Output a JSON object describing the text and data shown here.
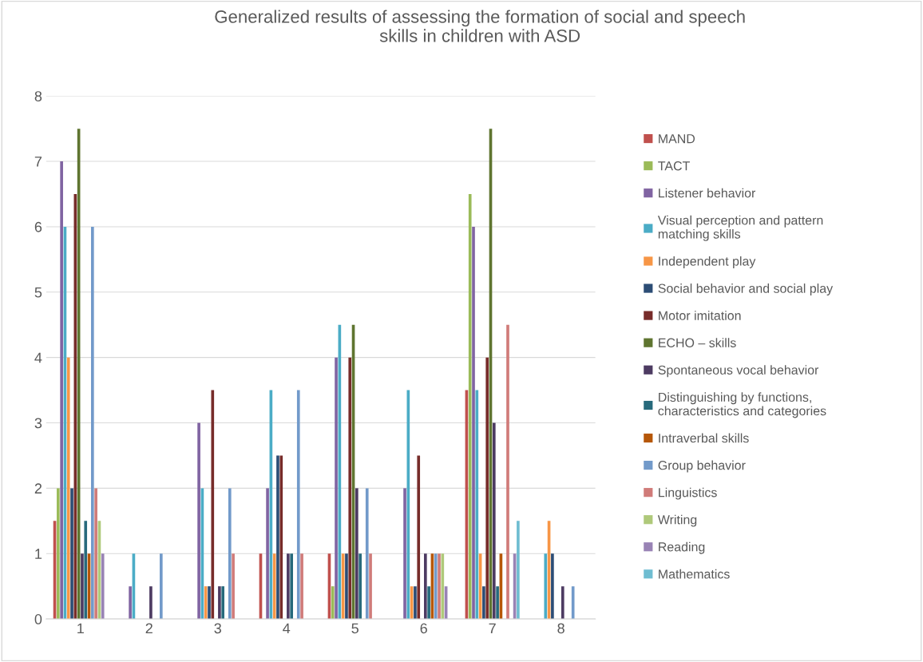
{
  "chart_data": {
    "type": "bar",
    "title": "Generalized results of assessing the formation of social and speech\nskills in children with ASD",
    "categories": [
      "1",
      "2",
      "3",
      "4",
      "5",
      "6",
      "7",
      "8"
    ],
    "series": [
      {
        "name": "MAND",
        "color": "#c0504d",
        "values": [
          1.5,
          0,
          0,
          1,
          1,
          0,
          3.5,
          0
        ]
      },
      {
        "name": "TACT",
        "color": "#9bbb59",
        "values": [
          2,
          0,
          0,
          0,
          0.5,
          0,
          6.5,
          0
        ]
      },
      {
        "name": "Listener behavior",
        "color": "#8064a2",
        "values": [
          7,
          0.5,
          3,
          2,
          4,
          2,
          6,
          0
        ]
      },
      {
        "name": "Visual perception and pattern\nmatching skills",
        "color": "#4bacc6",
        "values": [
          6,
          1,
          2,
          3.5,
          4.5,
          3.5,
          3.5,
          1
        ]
      },
      {
        "name": "Independent play",
        "color": "#f79646",
        "values": [
          4,
          0,
          0.5,
          1,
          1,
          0.5,
          1,
          1.5
        ]
      },
      {
        "name": "Social behavior and social play",
        "color": "#2c4d75",
        "values": [
          2,
          0,
          0.5,
          2.5,
          1,
          0.5,
          0.5,
          1
        ]
      },
      {
        "name": "Motor imitation",
        "color": "#772c2a",
        "values": [
          6.5,
          0,
          3.5,
          2.5,
          4,
          2.5,
          4,
          0
        ]
      },
      {
        "name": "ECHO – skills",
        "color": "#5f7530",
        "values": [
          7.5,
          0,
          0,
          0,
          4.5,
          0,
          7.5,
          0
        ]
      },
      {
        "name": "Spontaneous vocal behavior",
        "color": "#4d3b62",
        "values": [
          1,
          0.5,
          0.5,
          1,
          2,
          1,
          3,
          0.5
        ]
      },
      {
        "name": "Distinguishing by functions,\ncharacteristics and categories",
        "color": "#276a7c",
        "values": [
          1.5,
          0,
          0.5,
          1,
          1,
          0.5,
          0.5,
          0
        ]
      },
      {
        "name": "Intraverbal skills",
        "color": "#b65708",
        "values": [
          1,
          0,
          0,
          0,
          0,
          1,
          1,
          0
        ]
      },
      {
        "name": "Group behavior",
        "color": "#729aca",
        "values": [
          6,
          1,
          2,
          3.5,
          2,
          1,
          0,
          0.5
        ]
      },
      {
        "name": "Linguistics",
        "color": "#d07b79",
        "values": [
          2,
          0,
          1,
          1,
          1,
          1,
          4.5,
          0
        ]
      },
      {
        "name": "Writing",
        "color": "#afc97a",
        "values": [
          1.5,
          0,
          0,
          0,
          0,
          1,
          0,
          0
        ]
      },
      {
        "name": "Reading",
        "color": "#9983b5",
        "values": [
          1,
          0,
          0,
          0,
          0,
          0.5,
          1,
          0
        ]
      },
      {
        "name": "Mathematics",
        "color": "#6fbdd1",
        "values": [
          0,
          0,
          0,
          0,
          0,
          0,
          1.5,
          0
        ]
      }
    ],
    "ylim": [
      0,
      8
    ],
    "yticks": [
      0,
      1,
      2,
      3,
      4,
      5,
      6,
      7,
      8
    ],
    "grid": "y",
    "legend": "right"
  }
}
